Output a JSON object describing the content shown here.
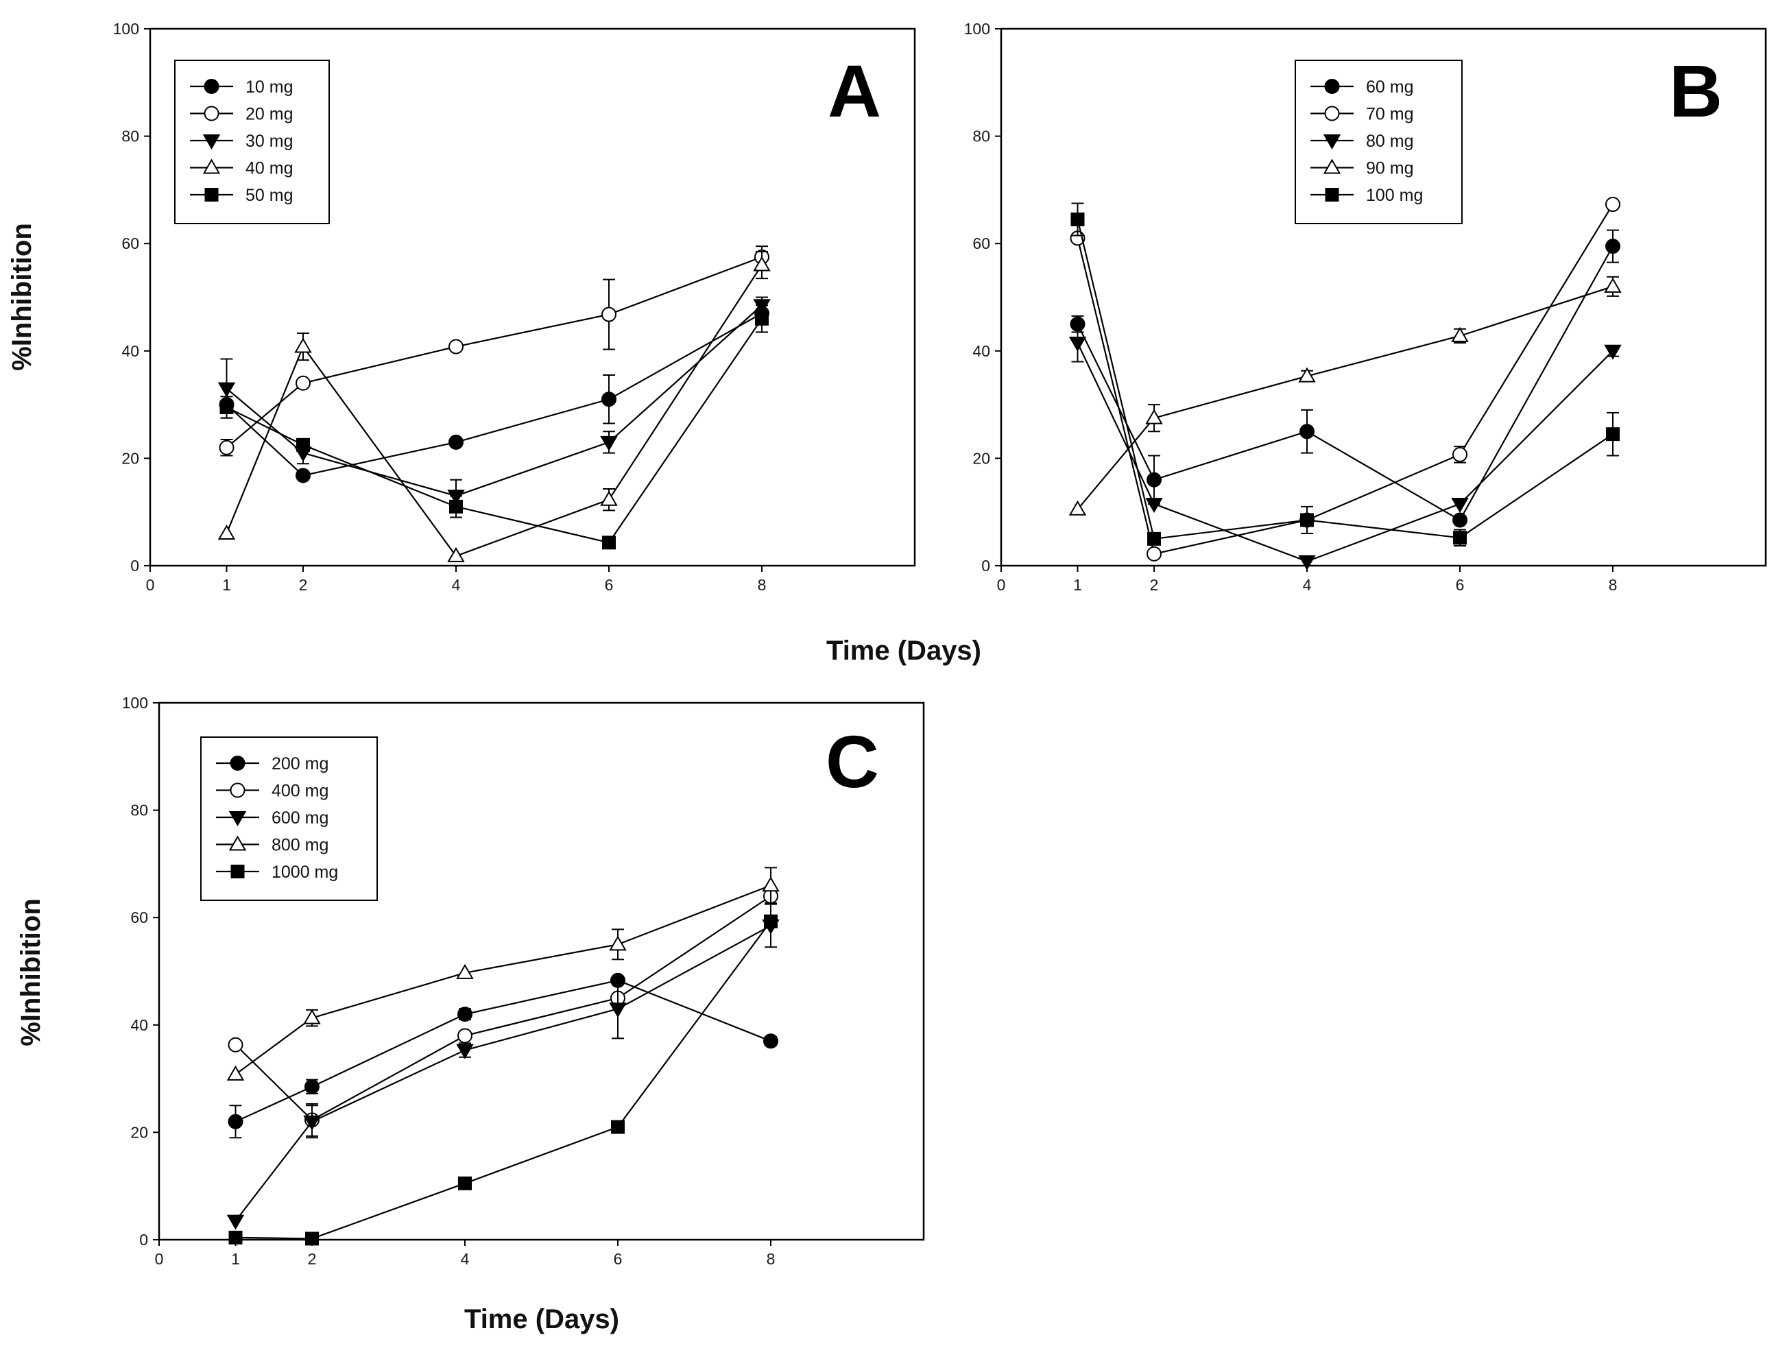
{
  "figure": {
    "shared_xlabel": "Time (Days)"
  },
  "chart_data": [
    {
      "type": "line",
      "panel_label": "A",
      "title": "",
      "xlabel": "",
      "ylabel": "%Inhibition",
      "xlim": [
        0,
        10
      ],
      "ylim": [
        0,
        100
      ],
      "xticks": [
        0,
        1,
        2,
        4,
        6,
        8
      ],
      "yticks": [
        0,
        20,
        40,
        60,
        80,
        100
      ],
      "categories": [
        "1",
        "2",
        "4",
        "6",
        "8"
      ],
      "legend_position": "top-left",
      "series": [
        {
          "name": "10 mg",
          "marker": "circle-filled",
          "values": [
            30,
            16.8,
            23,
            31,
            47
          ],
          "errors": [
            0,
            0,
            0,
            4.5,
            0
          ]
        },
        {
          "name": "20 mg",
          "marker": "circle-open",
          "values": [
            22,
            34,
            40.8,
            46.8,
            57.5
          ],
          "errors": [
            1.5,
            0,
            0,
            6.5,
            2
          ]
        },
        {
          "name": "30 mg",
          "marker": "triangle-down-filled",
          "values": [
            33,
            21,
            13,
            23,
            48.5
          ],
          "errors": [
            5.5,
            2,
            3,
            2,
            1.5
          ]
        },
        {
          "name": "40 mg",
          "marker": "triangle-up-open",
          "values": [
            6,
            40.8,
            1.8,
            12.3,
            56
          ],
          "errors": [
            0,
            2.5,
            0,
            2,
            2.5
          ]
        },
        {
          "name": "50 mg",
          "marker": "square-filled",
          "values": [
            29.5,
            22.5,
            11,
            4.3,
            46
          ],
          "errors": [
            2,
            0,
            2,
            0,
            2.5
          ]
        }
      ]
    },
    {
      "type": "line",
      "panel_label": "B",
      "title": "",
      "xlabel": "",
      "ylabel": "",
      "xlim": [
        0,
        10
      ],
      "ylim": [
        0,
        100
      ],
      "xticks": [
        0,
        1,
        2,
        4,
        6,
        8
      ],
      "yticks": [
        0,
        20,
        40,
        60,
        80,
        100
      ],
      "categories": [
        "1",
        "2",
        "4",
        "6",
        "8"
      ],
      "legend_position": "top-center",
      "series": [
        {
          "name": "60 mg",
          "marker": "circle-filled",
          "values": [
            45,
            16,
            25,
            8.5,
            59.5
          ],
          "errors": [
            1.5,
            4.5,
            4,
            0,
            3
          ]
        },
        {
          "name": "70 mg",
          "marker": "circle-open",
          "values": [
            61,
            2.2,
            8.5,
            20.7,
            67.3
          ],
          "errors": [
            0,
            0,
            0,
            1.5,
            0
          ]
        },
        {
          "name": "80 mg",
          "marker": "triangle-down-filled",
          "values": [
            41.5,
            11.5,
            0.8,
            11.5,
            40
          ],
          "errors": [
            3.5,
            0,
            0,
            0,
            1
          ]
        },
        {
          "name": "90 mg",
          "marker": "triangle-up-open",
          "values": [
            10.5,
            27.5,
            35.3,
            42.8,
            52
          ],
          "errors": [
            0,
            2.5,
            1,
            1.3,
            1.8
          ]
        },
        {
          "name": "100 mg",
          "marker": "square-filled",
          "values": [
            64.5,
            5,
            8.5,
            5.2,
            24.5
          ],
          "errors": [
            3,
            0,
            2.5,
            1.5,
            4
          ]
        }
      ]
    },
    {
      "type": "line",
      "panel_label": "C",
      "title": "",
      "xlabel": "Time (Days)",
      "ylabel": "%Inhibition",
      "xlim": [
        0,
        10
      ],
      "ylim": [
        0,
        100
      ],
      "xticks": [
        0,
        1,
        2,
        4,
        6,
        8
      ],
      "yticks": [
        0,
        20,
        40,
        60,
        80,
        100
      ],
      "categories": [
        "1",
        "2",
        "4",
        "6",
        "8"
      ],
      "legend_position": "top-left",
      "series": [
        {
          "name": "200 mg",
          "marker": "circle-filled",
          "values": [
            22,
            28.5,
            42,
            48.3,
            37
          ],
          "errors": [
            3,
            1.3,
            1,
            0,
            0.8
          ]
        },
        {
          "name": "400 mg",
          "marker": "circle-open",
          "values": [
            36.3,
            22.3,
            38,
            45,
            64
          ],
          "errors": [
            0,
            3,
            0,
            0,
            0
          ]
        },
        {
          "name": "600 mg",
          "marker": "triangle-down-filled",
          "values": [
            3.5,
            22,
            35.3,
            43,
            58.5
          ],
          "errors": [
            0,
            3,
            1.3,
            5.5,
            4
          ]
        },
        {
          "name": "800 mg",
          "marker": "triangle-up-open",
          "values": [
            30.8,
            41.3,
            49.7,
            55,
            66
          ],
          "errors": [
            0,
            1.5,
            0,
            2.8,
            3.3
          ]
        },
        {
          "name": "1000 mg",
          "marker": "square-filled",
          "values": [
            0.4,
            0.2,
            10.5,
            21,
            59.3
          ],
          "errors": [
            0,
            0,
            0,
            0,
            0
          ]
        }
      ]
    }
  ]
}
